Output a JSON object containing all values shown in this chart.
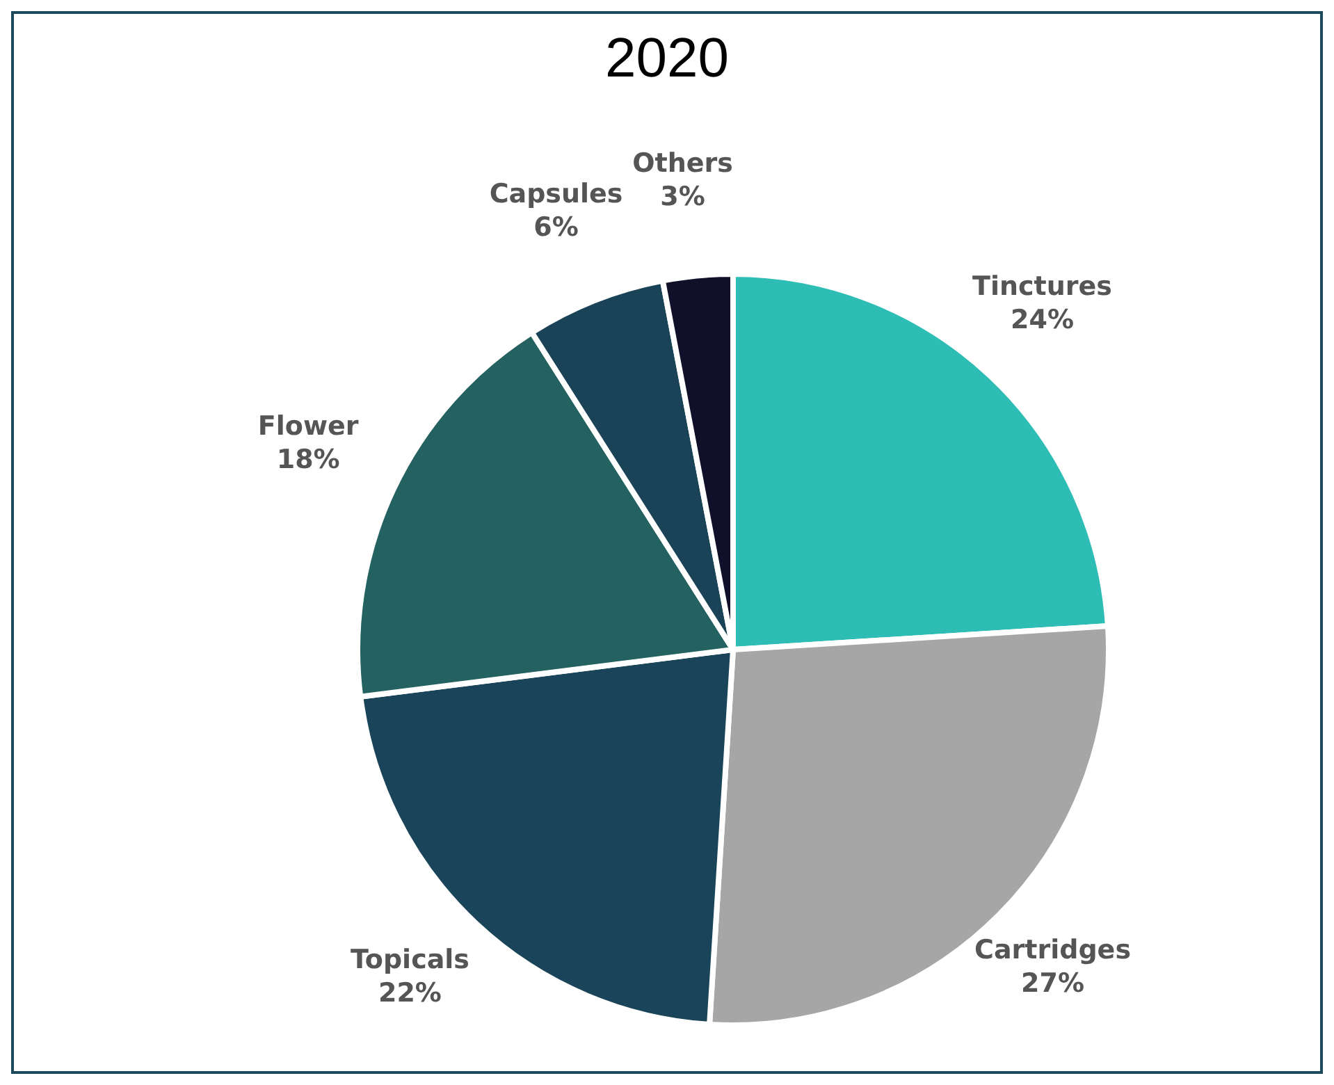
{
  "chart_data": {
    "type": "pie",
    "title": "2020",
    "categories": [
      "Tinctures",
      "Cartridges",
      "Topicals",
      "Flower",
      "Capsules",
      "Others"
    ],
    "values": [
      24,
      27,
      22,
      18,
      6,
      3
    ],
    "value_labels": [
      "24%",
      "27%",
      "22%",
      "18%",
      "6%",
      "3%"
    ],
    "colors": [
      "#2ebdb5",
      "#a6a6a6",
      "#1a4459",
      "#236260",
      "#1b4357",
      "#10102a"
    ]
  }
}
